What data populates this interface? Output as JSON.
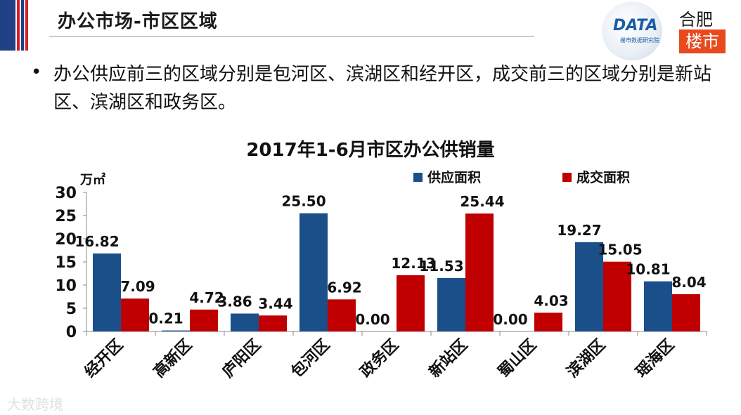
{
  "header": {
    "title": "办公市场-市区区域",
    "logo_kdata_text": "DATA",
    "logo_kdata_sub": "楼市数据研究院",
    "logo_hf_top": "合肥",
    "logo_hf_bottom": "楼市",
    "colors": {
      "flag_blue": "#1f3f86",
      "flag_red": "#d61f26"
    }
  },
  "body": {
    "bullet": "•",
    "text": "办公供应前三的区域分别是包河区、滨湖区和经开区，成交前三的区域分别是新站区、滨湖区和政务区。"
  },
  "watermark": "大数跨境",
  "chart_data": {
    "type": "bar",
    "title": "2017年1-6月市区办公供销量",
    "unit_label": "万㎡",
    "categories": [
      "经开区",
      "高新区",
      "庐阳区",
      "包河区",
      "政务区",
      "新站区",
      "蜀山区",
      "滨湖区",
      "瑶海区"
    ],
    "series": [
      {
        "name": "供应面积",
        "color": "#1b4f8a",
        "values": [
          16.82,
          0.21,
          3.86,
          25.5,
          0.0,
          11.53,
          0.0,
          19.27,
          10.81
        ],
        "labels": [
          "16.82",
          "0.21",
          "3.86",
          "25.50",
          "0.00",
          "11.53",
          "0.00",
          "19.27",
          "10.81"
        ]
      },
      {
        "name": "成交面积",
        "color": "#c00000",
        "values": [
          7.09,
          4.72,
          3.44,
          6.92,
          12.13,
          25.44,
          4.03,
          15.05,
          8.04
        ],
        "labels": [
          "7.09",
          "4.72",
          "3.44",
          "6.92",
          "12.13",
          "25.44",
          "4.03",
          "15.05",
          "8.04"
        ]
      }
    ],
    "yticks": [
      "0",
      "5",
      "10",
      "15",
      "20",
      "25",
      "30"
    ],
    "ylim": [
      0,
      30
    ],
    "grid": false,
    "legend_position": "top-right"
  }
}
